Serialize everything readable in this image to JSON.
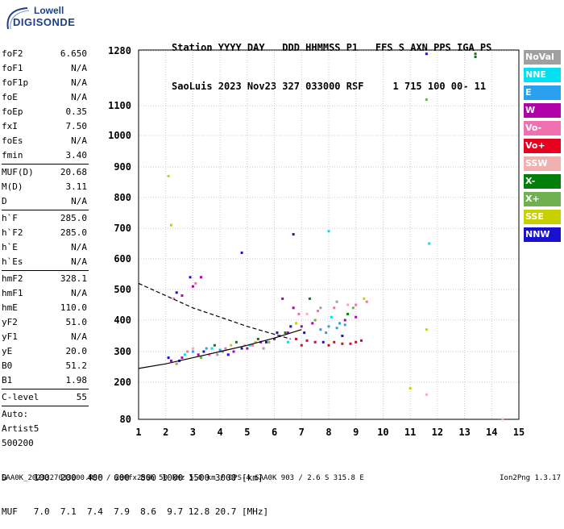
{
  "logo": {
    "brand": "Lowell",
    "product": "DIGISONDE"
  },
  "header": {
    "line1": "Station YYYY DAY   DDD HHMMSS P1   FFS S AXN PPS IGA PS",
    "line2": "SaoLuis 2023 Nov23 327 033000 RSF     1 715 100 00- 11"
  },
  "params": {
    "group1": [
      {
        "label": "foF2",
        "value": "6.650"
      },
      {
        "label": "foF1",
        "value": "N/A"
      },
      {
        "label": "foF1p",
        "value": "N/A"
      },
      {
        "label": "foE",
        "value": "N/A"
      },
      {
        "label": "foEp",
        "value": "0.35"
      },
      {
        "label": "fxI",
        "value": "7.50"
      },
      {
        "label": "foEs",
        "value": "N/A"
      },
      {
        "label": "fmin",
        "value": "3.40"
      }
    ],
    "group2": [
      {
        "label": "MUF(D)",
        "value": "20.68"
      },
      {
        "label": "M(D)",
        "value": "3.11"
      },
      {
        "label": "D",
        "value": "N/A"
      }
    ],
    "group3": [
      {
        "label": "h`F",
        "value": "285.0"
      },
      {
        "label": "h`F2",
        "value": "285.0"
      },
      {
        "label": "h`E",
        "value": "N/A"
      },
      {
        "label": "h`Es",
        "value": "N/A"
      }
    ],
    "group4": [
      {
        "label": "hmF2",
        "value": "328.1"
      },
      {
        "label": "hmF1",
        "value": "N/A"
      },
      {
        "label": "hmE",
        "value": "110.0"
      },
      {
        "label": "yF2",
        "value": "51.0"
      },
      {
        "label": "yF1",
        "value": "N/A"
      },
      {
        "label": "yE",
        "value": "20.0"
      },
      {
        "label": "B0",
        "value": "51.2"
      },
      {
        "label": "B1",
        "value": "1.98"
      }
    ],
    "group5": [
      {
        "label": "C-level",
        "value": "55"
      }
    ],
    "autoscale": [
      "Auto:",
      "Artist5",
      "500200"
    ]
  },
  "legend": [
    {
      "label": "NoVal",
      "color": "#a0a0a0"
    },
    {
      "label": "NNE",
      "color": "#00e0f0"
    },
    {
      "label": "E",
      "color": "#2aa0f0"
    },
    {
      "label": "W",
      "color": "#b000a8"
    },
    {
      "label": "Vo-",
      "color": "#f070b0"
    },
    {
      "label": "Vo+",
      "color": "#e80020"
    },
    {
      "label": "SSW",
      "color": "#f0b0b0"
    },
    {
      "label": "X-",
      "color": "#00800a"
    },
    {
      "label": "X+",
      "color": "#70b050"
    },
    {
      "label": "SSE",
      "color": "#c8d000"
    },
    {
      "label": "NNW",
      "color": "#1a10d0"
    }
  ],
  "chart_data": {
    "type": "scatter",
    "x_ticks": [
      "1",
      "2",
      "3",
      "4",
      "5",
      "6",
      "7",
      "8",
      "9",
      "10",
      "11",
      "12",
      "13",
      "14",
      "15"
    ],
    "y_ticks": [
      "1280",
      "1100",
      "1000",
      "900",
      "800",
      "700",
      "600",
      "500",
      "400",
      "300",
      "200",
      "80"
    ],
    "xlim": [
      1,
      15
    ],
    "grid": true,
    "series": [
      {
        "color": "#e80020",
        "points": [
          [
            7,
            320
          ],
          [
            7.5,
            330
          ],
          [
            8,
            320
          ],
          [
            8.5,
            325
          ],
          [
            9,
            330
          ],
          [
            6.8,
            340
          ],
          [
            7.2,
            335
          ],
          [
            8.2,
            330
          ],
          [
            8.8,
            325
          ],
          [
            9.2,
            335
          ]
        ]
      },
      {
        "color": "#2aa0f0",
        "points": [
          [
            3,
            300
          ],
          [
            3.5,
            310
          ],
          [
            4,
            305
          ],
          [
            7.7,
            370
          ],
          [
            8,
            380
          ],
          [
            8.3,
            375
          ],
          [
            8.6,
            385
          ],
          [
            7.9,
            360
          ],
          [
            8.4,
            390
          ]
        ]
      },
      {
        "color": "#b000a8",
        "points": [
          [
            2.2,
            270
          ],
          [
            2.6,
            280
          ],
          [
            3.2,
            290
          ],
          [
            4.5,
            300
          ],
          [
            5,
            310
          ],
          [
            5.5,
            330
          ],
          [
            6,
            340
          ],
          [
            6.5,
            360
          ],
          [
            7,
            380
          ],
          [
            7.4,
            390
          ],
          [
            8.6,
            400
          ],
          [
            9,
            410
          ],
          [
            6.7,
            440
          ],
          [
            6.3,
            470
          ],
          [
            2.6,
            480
          ],
          [
            3,
            510
          ],
          [
            3.3,
            540
          ]
        ]
      },
      {
        "color": "#f070b0",
        "points": [
          [
            2.8,
            300
          ],
          [
            3.6,
            290
          ],
          [
            4.2,
            310
          ],
          [
            5.2,
            320
          ],
          [
            6.2,
            350
          ],
          [
            6.9,
            420
          ],
          [
            7.6,
            430
          ],
          [
            8.2,
            440
          ],
          [
            9,
            450
          ],
          [
            9.4,
            460
          ],
          [
            2.3,
            470
          ],
          [
            3.1,
            520
          ]
        ]
      },
      {
        "color": "#1a10d0",
        "points": [
          [
            2.1,
            280
          ],
          [
            2.5,
            270
          ],
          [
            3.4,
            300
          ],
          [
            4.3,
            290
          ],
          [
            4.8,
            310
          ],
          [
            5.7,
            330
          ],
          [
            6.1,
            360
          ],
          [
            6.6,
            380
          ],
          [
            7.1,
            360
          ],
          [
            7.8,
            330
          ],
          [
            8.5,
            350
          ],
          [
            2.4,
            490
          ],
          [
            2.9,
            540
          ],
          [
            4.8,
            620
          ],
          [
            6.7,
            680
          ],
          [
            11.6,
            1270
          ]
        ]
      },
      {
        "color": "#00800a",
        "points": [
          [
            3.8,
            320
          ],
          [
            4.6,
            330
          ],
          [
            5.4,
            340
          ],
          [
            6.4,
            360
          ],
          [
            7.3,
            470
          ],
          [
            8.7,
            420
          ],
          [
            13.4,
            1270
          ],
          [
            13.4,
            1260
          ]
        ]
      },
      {
        "color": "#70b050",
        "points": [
          [
            3.3,
            280
          ],
          [
            4.1,
            300
          ],
          [
            5.8,
            330
          ],
          [
            7.5,
            400
          ],
          [
            8.9,
            440
          ],
          [
            11.6,
            1120
          ]
        ]
      },
      {
        "color": "#c8d000",
        "points": [
          [
            2.1,
            870
          ],
          [
            2.2,
            710
          ],
          [
            4.4,
            320
          ],
          [
            5.3,
            330
          ],
          [
            6.8,
            390
          ],
          [
            9.3,
            470
          ],
          [
            11,
            180
          ],
          [
            11.6,
            370
          ]
        ]
      },
      {
        "color": "#00e0f0",
        "points": [
          [
            2.7,
            290
          ],
          [
            3.7,
            310
          ],
          [
            5.1,
            320
          ],
          [
            6.5,
            330
          ],
          [
            8.1,
            410
          ],
          [
            11.7,
            650
          ],
          [
            8,
            690
          ]
        ]
      },
      {
        "color": "#a0a0a0",
        "points": [
          [
            2.4,
            260
          ],
          [
            3.9,
            290
          ],
          [
            5.6,
            310
          ],
          [
            7.7,
            440
          ],
          [
            8.3,
            460
          ]
        ]
      },
      {
        "color": "#f0b0b0",
        "points": [
          [
            3,
            310
          ],
          [
            4.9,
            320
          ],
          [
            7.2,
            420
          ],
          [
            8.7,
            450
          ],
          [
            11.6,
            160
          ],
          [
            14.4,
            80
          ]
        ]
      }
    ],
    "fit_curve": {
      "color": "#000000",
      "points": [
        [
          1,
          245
        ],
        [
          2,
          260
        ],
        [
          3,
          280
        ],
        [
          4,
          300
        ],
        [
          5,
          320
        ],
        [
          6,
          343
        ],
        [
          7,
          370
        ]
      ]
    },
    "dashed_curve": {
      "color": "#000000",
      "points": [
        [
          1,
          520
        ],
        [
          2,
          480
        ],
        [
          3,
          440
        ],
        [
          4,
          410
        ],
        [
          5,
          380
        ],
        [
          6,
          355
        ],
        [
          6.6,
          340
        ]
      ]
    }
  },
  "bottom_table": {
    "line1": "D     100  200  400  600  800 1000 1500 3000 [km]",
    "line2": "MUF   7.0  7.1  7.4  7.9  8.6  9.7 12.8 20.7 [MHz]"
  },
  "footer": {
    "left": "SAA0K_2023327033000.RSF / 280fx256h 50 kHz 5.0 km / DPS-4 SAA0K 903 / 2.6 S 315.8 E",
    "right": "Ion2Png 1.3.17"
  }
}
